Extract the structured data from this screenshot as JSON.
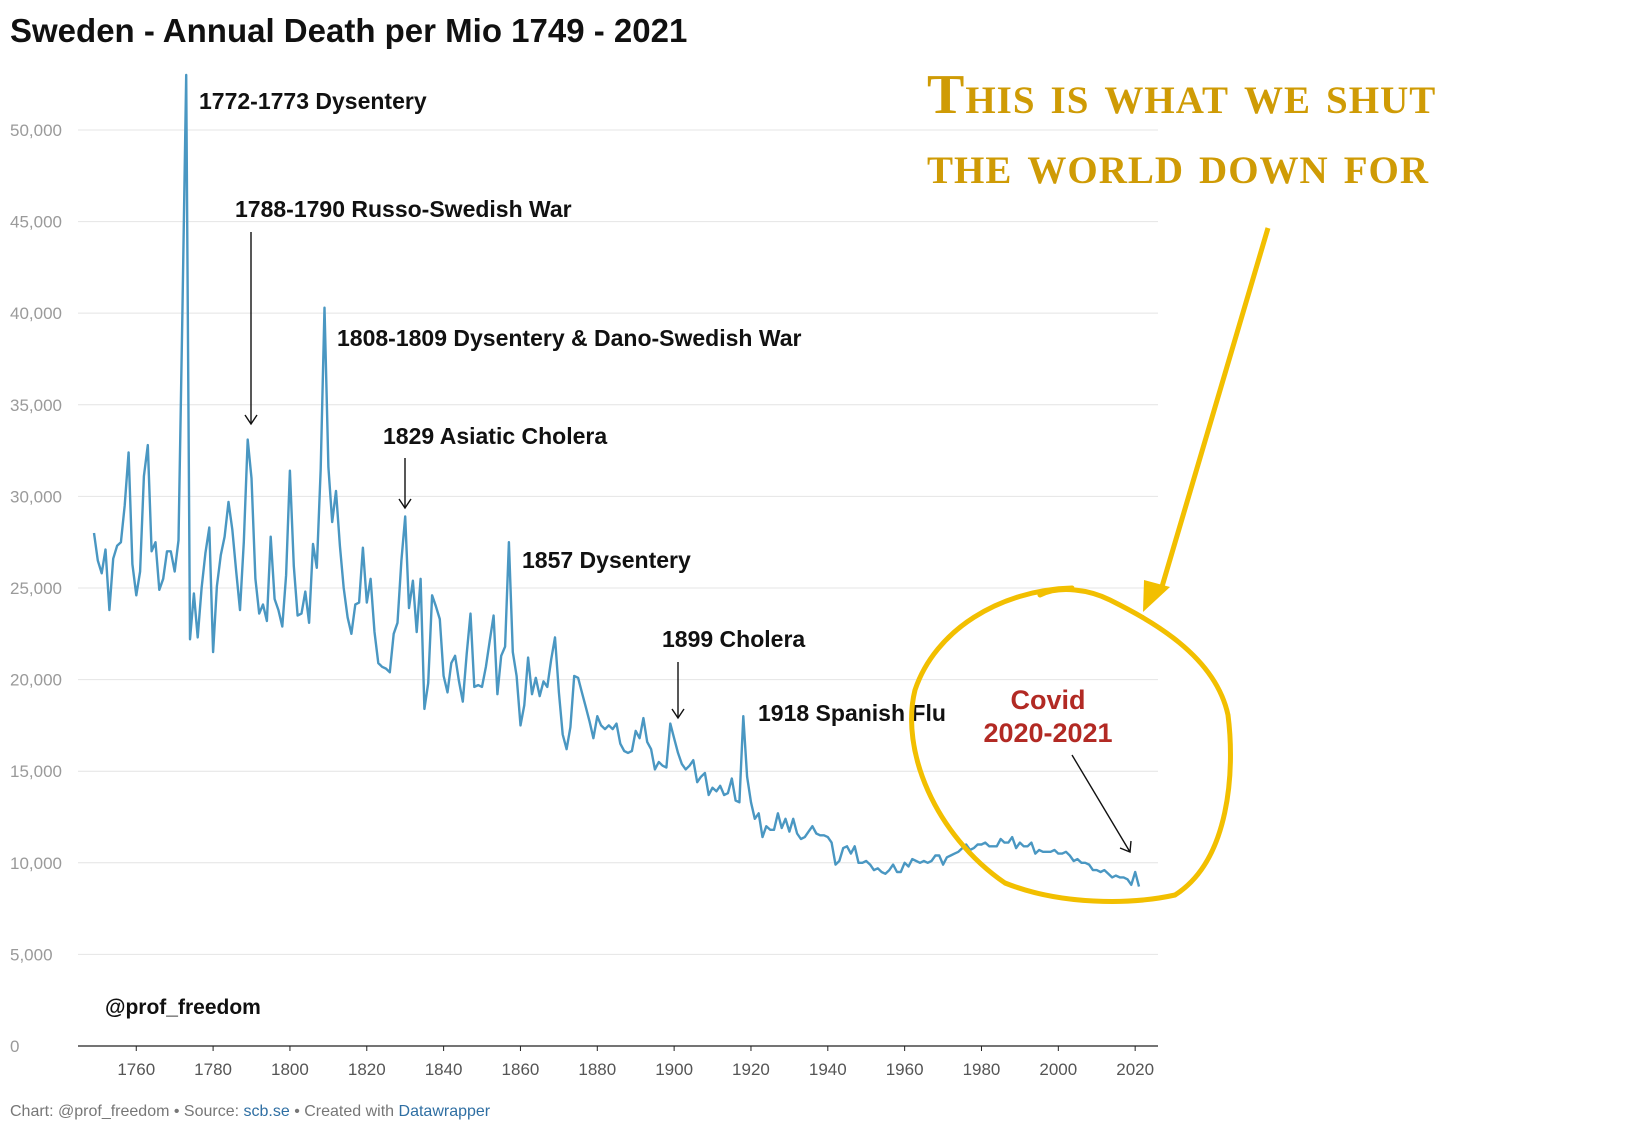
{
  "chart_data": {
    "type": "line",
    "title": "Sweden - Annual Death per Mio 1749 - 2021",
    "xlabel": "",
    "ylabel": "",
    "xlim": [
      1749,
      2021
    ],
    "ylim": [
      0,
      53000
    ],
    "x_ticks": [
      1760,
      1780,
      1800,
      1820,
      1840,
      1860,
      1880,
      1900,
      1920,
      1940,
      1960,
      1980,
      2000,
      2020
    ],
    "y_ticks": [
      0,
      5000,
      10000,
      15000,
      20000,
      25000,
      30000,
      35000,
      40000,
      45000,
      50000
    ],
    "y_tick_labels": [
      "0",
      "5,000",
      "10,000",
      "15,000",
      "20,000",
      "25,000",
      "30,000",
      "35,000",
      "40,000",
      "45,000",
      "50,000"
    ],
    "grid": true,
    "line_color": "#4a97c2",
    "series": [
      {
        "name": "",
        "points": [
          [
            1749,
            28000
          ],
          [
            1750,
            26500
          ],
          [
            1751,
            25800
          ],
          [
            1752,
            27100
          ],
          [
            1753,
            23800
          ],
          [
            1754,
            26600
          ],
          [
            1755,
            27300
          ],
          [
            1756,
            27500
          ],
          [
            1757,
            29500
          ],
          [
            1758,
            32400
          ],
          [
            1759,
            26300
          ],
          [
            1760,
            24600
          ],
          [
            1761,
            25900
          ],
          [
            1762,
            31100
          ],
          [
            1763,
            32800
          ],
          [
            1764,
            27000
          ],
          [
            1765,
            27500
          ],
          [
            1766,
            24900
          ],
          [
            1767,
            25500
          ],
          [
            1768,
            27000
          ],
          [
            1769,
            27000
          ],
          [
            1770,
            25900
          ],
          [
            1771,
            27600
          ],
          [
            1772,
            40000
          ],
          [
            1773,
            53000
          ],
          [
            1774,
            22200
          ],
          [
            1775,
            24700
          ],
          [
            1776,
            22300
          ],
          [
            1777,
            25000
          ],
          [
            1778,
            26900
          ],
          [
            1779,
            28300
          ],
          [
            1780,
            21500
          ],
          [
            1781,
            25100
          ],
          [
            1782,
            26800
          ],
          [
            1783,
            27800
          ],
          [
            1784,
            29700
          ],
          [
            1785,
            28200
          ],
          [
            1786,
            25900
          ],
          [
            1787,
            23800
          ],
          [
            1788,
            27500
          ],
          [
            1789,
            33100
          ],
          [
            1790,
            31000
          ],
          [
            1791,
            25500
          ],
          [
            1792,
            23600
          ],
          [
            1793,
            24100
          ],
          [
            1794,
            23200
          ],
          [
            1795,
            27800
          ],
          [
            1796,
            24400
          ],
          [
            1797,
            23800
          ],
          [
            1798,
            22900
          ],
          [
            1799,
            25700
          ],
          [
            1800,
            31400
          ],
          [
            1801,
            26200
          ],
          [
            1802,
            23500
          ],
          [
            1803,
            23600
          ],
          [
            1804,
            24800
          ],
          [
            1805,
            23100
          ],
          [
            1806,
            27400
          ],
          [
            1807,
            26100
          ],
          [
            1808,
            31500
          ],
          [
            1809,
            40300
          ],
          [
            1810,
            31600
          ],
          [
            1811,
            28600
          ],
          [
            1812,
            30300
          ],
          [
            1813,
            27300
          ],
          [
            1814,
            25000
          ],
          [
            1815,
            23400
          ],
          [
            1816,
            22500
          ],
          [
            1817,
            24100
          ],
          [
            1818,
            24200
          ],
          [
            1819,
            27200
          ],
          [
            1820,
            24200
          ],
          [
            1821,
            25500
          ],
          [
            1822,
            22600
          ],
          [
            1823,
            20900
          ],
          [
            1824,
            20700
          ],
          [
            1825,
            20600
          ],
          [
            1826,
            20400
          ],
          [
            1827,
            22500
          ],
          [
            1828,
            23100
          ],
          [
            1829,
            26500
          ],
          [
            1830,
            28900
          ],
          [
            1831,
            23900
          ],
          [
            1832,
            25400
          ],
          [
            1833,
            22600
          ],
          [
            1834,
            25500
          ],
          [
            1835,
            18400
          ],
          [
            1836,
            19800
          ],
          [
            1837,
            24600
          ],
          [
            1838,
            24000
          ],
          [
            1839,
            23300
          ],
          [
            1840,
            20200
          ],
          [
            1841,
            19300
          ],
          [
            1842,
            20900
          ],
          [
            1843,
            21300
          ],
          [
            1844,
            19900
          ],
          [
            1845,
            18800
          ],
          [
            1846,
            21400
          ],
          [
            1847,
            23600
          ],
          [
            1848,
            19600
          ],
          [
            1849,
            19700
          ],
          [
            1850,
            19600
          ],
          [
            1851,
            20700
          ],
          [
            1852,
            22100
          ],
          [
            1853,
            23500
          ],
          [
            1854,
            19200
          ],
          [
            1855,
            21300
          ],
          [
            1856,
            21800
          ],
          [
            1857,
            27500
          ],
          [
            1858,
            21500
          ],
          [
            1859,
            20200
          ],
          [
            1860,
            17500
          ],
          [
            1861,
            18600
          ],
          [
            1862,
            21200
          ],
          [
            1863,
            19200
          ],
          [
            1864,
            20100
          ],
          [
            1865,
            19100
          ],
          [
            1866,
            19900
          ],
          [
            1867,
            19600
          ],
          [
            1868,
            21100
          ],
          [
            1869,
            22300
          ],
          [
            1870,
            19300
          ],
          [
            1871,
            17000
          ],
          [
            1872,
            16200
          ],
          [
            1873,
            17400
          ],
          [
            1874,
            20200
          ],
          [
            1875,
            20100
          ],
          [
            1876,
            19300
          ],
          [
            1877,
            18500
          ],
          [
            1878,
            17700
          ],
          [
            1879,
            16800
          ],
          [
            1880,
            18000
          ],
          [
            1881,
            17500
          ],
          [
            1882,
            17300
          ],
          [
            1883,
            17500
          ],
          [
            1884,
            17300
          ],
          [
            1885,
            17600
          ],
          [
            1886,
            16500
          ],
          [
            1887,
            16100
          ],
          [
            1888,
            16000
          ],
          [
            1889,
            16100
          ],
          [
            1890,
            17200
          ],
          [
            1891,
            16800
          ],
          [
            1892,
            17900
          ],
          [
            1893,
            16600
          ],
          [
            1894,
            16200
          ],
          [
            1895,
            15100
          ],
          [
            1896,
            15500
          ],
          [
            1897,
            15300
          ],
          [
            1898,
            15200
          ],
          [
            1899,
            17600
          ],
          [
            1900,
            16800
          ],
          [
            1901,
            16000
          ],
          [
            1902,
            15400
          ],
          [
            1903,
            15100
          ],
          [
            1904,
            15300
          ],
          [
            1905,
            15600
          ],
          [
            1906,
            14400
          ],
          [
            1907,
            14700
          ],
          [
            1908,
            14900
          ],
          [
            1909,
            13700
          ],
          [
            1910,
            14100
          ],
          [
            1911,
            13900
          ],
          [
            1912,
            14200
          ],
          [
            1913,
            13700
          ],
          [
            1914,
            13800
          ],
          [
            1915,
            14600
          ],
          [
            1916,
            13400
          ],
          [
            1917,
            13300
          ],
          [
            1918,
            18000
          ],
          [
            1919,
            14700
          ],
          [
            1920,
            13300
          ],
          [
            1921,
            12400
          ],
          [
            1922,
            12700
          ],
          [
            1923,
            11400
          ],
          [
            1924,
            12000
          ],
          [
            1925,
            11800
          ],
          [
            1926,
            11800
          ],
          [
            1927,
            12700
          ],
          [
            1928,
            11900
          ],
          [
            1929,
            12400
          ],
          [
            1930,
            11700
          ],
          [
            1931,
            12400
          ],
          [
            1932,
            11600
          ],
          [
            1933,
            11300
          ],
          [
            1934,
            11400
          ],
          [
            1935,
            11700
          ],
          [
            1936,
            12000
          ],
          [
            1937,
            11600
          ],
          [
            1938,
            11500
          ],
          [
            1939,
            11500
          ],
          [
            1940,
            11400
          ],
          [
            1941,
            11100
          ],
          [
            1942,
            9900
          ],
          [
            1943,
            10100
          ],
          [
            1944,
            10800
          ],
          [
            1945,
            10900
          ],
          [
            1946,
            10500
          ],
          [
            1947,
            10900
          ],
          [
            1948,
            10000
          ],
          [
            1949,
            10000
          ],
          [
            1950,
            10100
          ],
          [
            1951,
            9900
          ],
          [
            1952,
            9600
          ],
          [
            1953,
            9700
          ],
          [
            1954,
            9500
          ],
          [
            1955,
            9400
          ],
          [
            1956,
            9600
          ],
          [
            1957,
            9900
          ],
          [
            1958,
            9500
          ],
          [
            1959,
            9500
          ],
          [
            1960,
            10000
          ],
          [
            1961,
            9800
          ],
          [
            1962,
            10200
          ],
          [
            1963,
            10100
          ],
          [
            1964,
            10000
          ],
          [
            1965,
            10100
          ],
          [
            1966,
            10000
          ],
          [
            1967,
            10100
          ],
          [
            1968,
            10400
          ],
          [
            1969,
            10400
          ],
          [
            1970,
            9900
          ],
          [
            1971,
            10300
          ],
          [
            1972,
            10400
          ],
          [
            1973,
            10500
          ],
          [
            1974,
            10600
          ],
          [
            1975,
            10800
          ],
          [
            1976,
            11000
          ],
          [
            1977,
            10700
          ],
          [
            1978,
            10800
          ],
          [
            1979,
            11000
          ],
          [
            1980,
            11000
          ],
          [
            1981,
            11100
          ],
          [
            1982,
            10900
          ],
          [
            1983,
            10900
          ],
          [
            1984,
            10900
          ],
          [
            1985,
            11300
          ],
          [
            1986,
            11100
          ],
          [
            1987,
            11100
          ],
          [
            1988,
            11400
          ],
          [
            1989,
            10800
          ],
          [
            1990,
            11100
          ],
          [
            1991,
            10900
          ],
          [
            1992,
            10900
          ],
          [
            1993,
            11100
          ],
          [
            1994,
            10500
          ],
          [
            1995,
            10700
          ],
          [
            1996,
            10600
          ],
          [
            1997,
            10600
          ],
          [
            1998,
            10600
          ],
          [
            1999,
            10700
          ],
          [
            2000,
            10500
          ],
          [
            2001,
            10500
          ],
          [
            2002,
            10600
          ],
          [
            2003,
            10400
          ],
          [
            2004,
            10100
          ],
          [
            2005,
            10200
          ],
          [
            2006,
            10000
          ],
          [
            2007,
            10000
          ],
          [
            2008,
            9900
          ],
          [
            2009,
            9600
          ],
          [
            2010,
            9600
          ],
          [
            2011,
            9500
          ],
          [
            2012,
            9600
          ],
          [
            2013,
            9400
          ],
          [
            2014,
            9200
          ],
          [
            2015,
            9300
          ],
          [
            2016,
            9200
          ],
          [
            2017,
            9200
          ],
          [
            2018,
            9100
          ],
          [
            2019,
            8800
          ],
          [
            2020,
            9500
          ],
          [
            2021,
            8700
          ]
        ]
      }
    ],
    "annotations": [
      {
        "text": "1772-1773 Dysentery",
        "x": 1773,
        "y": 53000,
        "arrow": false
      },
      {
        "text": "1788-1790 Russo-Swedish War",
        "x": 1789,
        "y": 35000,
        "arrow": true
      },
      {
        "text": "1808-1809 Dysentery & Dano-Swedish War",
        "x": 1809,
        "y": 40300,
        "arrow": false
      },
      {
        "text": "1829 Asiatic Cholera",
        "x": 1830,
        "y": 30000,
        "arrow": true
      },
      {
        "text": "1857 Dysentery",
        "x": 1857,
        "y": 27500,
        "arrow": false
      },
      {
        "text": "1899 Cholera",
        "x": 1899,
        "y": 18700,
        "arrow": true
      },
      {
        "text": "1918 Spanish Flu",
        "x": 1918,
        "y": 18000,
        "arrow": false
      }
    ]
  },
  "covid_label": {
    "line1": "Covid",
    "line2": "2020-2021"
  },
  "callout": {
    "line1": "This is what we shut",
    "line2": "the world down for",
    "color": "#f2bf00",
    "text_color": "#cf9b05"
  },
  "credit": "@prof_freedom",
  "footer": {
    "prefix": "Chart: @prof_freedom • Source: ",
    "source_link": "scb.se",
    "middle": " • Created with ",
    "tool_link": "Datawrapper"
  }
}
